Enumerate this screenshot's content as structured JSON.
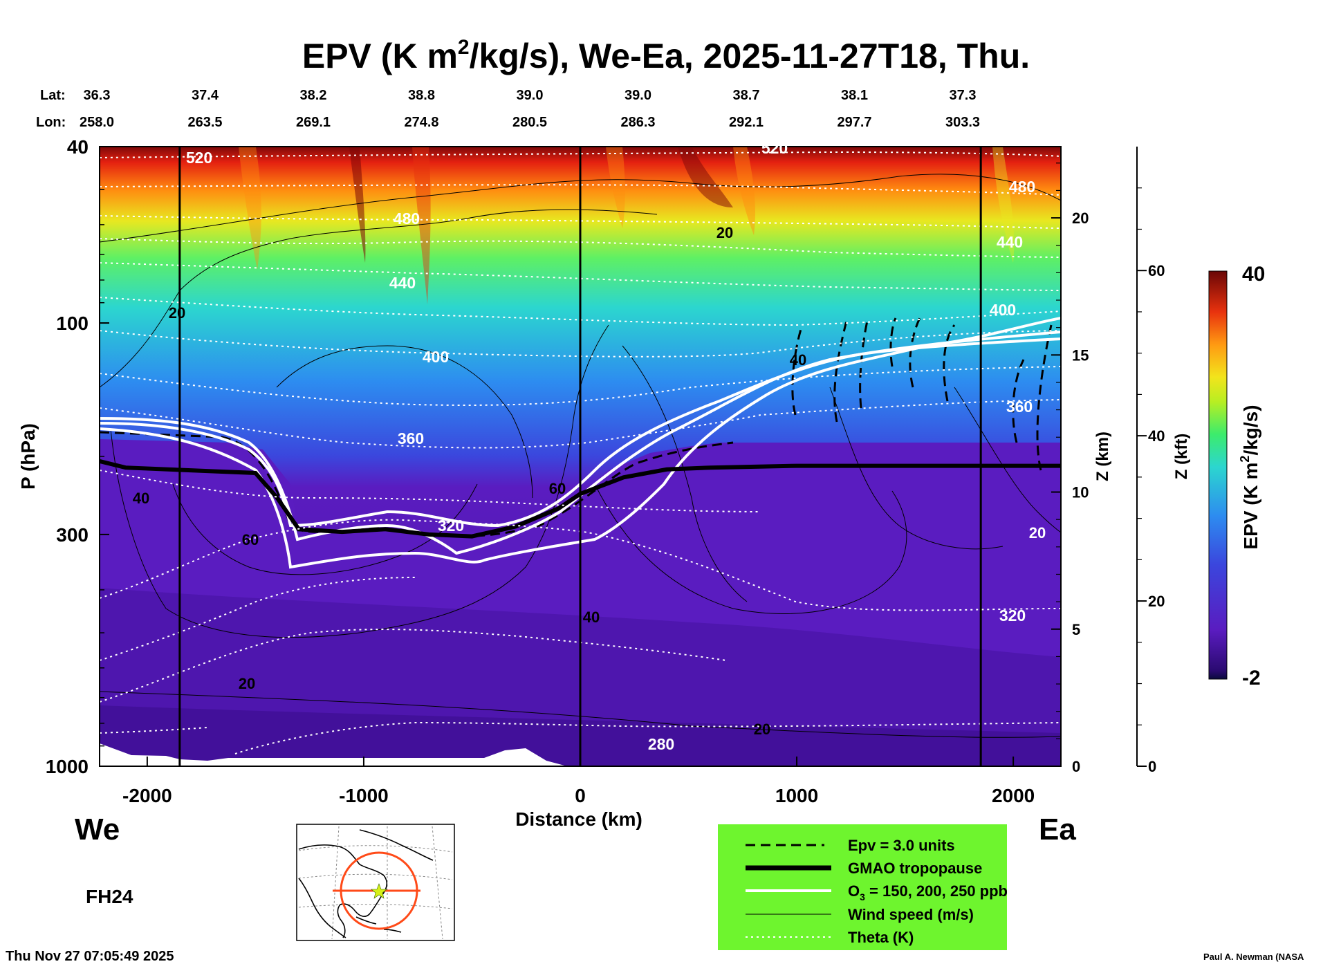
{
  "chart_data": {
    "type": "heatmap",
    "title": {
      "prefix": "EPV (K m",
      "sup": "2",
      "suffix": "/kg/s), We-Ea, 2025-11-27T18, Thu."
    },
    "lat_header": "Lat:",
    "lon_header": "Lon:",
    "lat_values": [
      "36.3",
      "37.4",
      "38.2",
      "38.8",
      "39.0",
      "39.0",
      "38.7",
      "38.1",
      "37.3"
    ],
    "lon_values": [
      "258.0",
      "263.5",
      "269.1",
      "274.8",
      "280.5",
      "286.3",
      "292.1",
      "297.7",
      "303.3"
    ],
    "xlabel": "Distance (km)",
    "xlim": [
      -2220,
      2220
    ],
    "xticks": [
      {
        "value": -2000,
        "label": "-2000"
      },
      {
        "value": -1000,
        "label": "-1000"
      },
      {
        "value": 0,
        "label": "0"
      },
      {
        "value": 1000,
        "label": "1000"
      },
      {
        "value": 2000,
        "label": "2000"
      }
    ],
    "ylabel": "P (hPa)",
    "ylim": [
      1000,
      40
    ],
    "yscale": "log",
    "yticks": [
      {
        "value": 40,
        "label": "40"
      },
      {
        "value": 100,
        "label": "100"
      },
      {
        "value": 300,
        "label": "300"
      },
      {
        "value": 1000,
        "label": "1000"
      }
    ],
    "z_km_label": "Z (km)",
    "z_km_ticks": [
      {
        "value": 0,
        "label": "0"
      },
      {
        "value": 5,
        "label": "5"
      },
      {
        "value": 10,
        "label": "10"
      },
      {
        "value": 15,
        "label": "15"
      },
      {
        "value": 20,
        "label": "20"
      }
    ],
    "z_kft_label": "Z (kft)",
    "z_kft_ticks": [
      {
        "value": 0,
        "label": "0"
      },
      {
        "value": 20,
        "label": "20"
      },
      {
        "value": 40,
        "label": "40"
      },
      {
        "value": 60,
        "label": "60"
      }
    ],
    "colorbar": {
      "label_prefix": "EPV (K m",
      "label_sup": "2",
      "label_suffix": "/kg/s)",
      "min": -2,
      "max": 40,
      "min_label": "-2",
      "max_label": "40"
    },
    "vertical_lines_km": [
      -1850,
      0,
      1850
    ],
    "theta_levels": [
      {
        "value": 280,
        "label": "280"
      },
      {
        "value": 320,
        "label": "320"
      },
      {
        "value": 360,
        "label": "360"
      },
      {
        "value": 400,
        "label": "400"
      },
      {
        "value": 440,
        "label": "440"
      },
      {
        "value": 480,
        "label": "480"
      },
      {
        "value": 520,
        "label": "520"
      }
    ],
    "wind_labels": [
      "20",
      "40",
      "60"
    ],
    "tropopause_hpa": [
      [
        -2220,
        205
      ],
      [
        -2100,
        212
      ],
      [
        -1500,
        218
      ],
      [
        -1400,
        248
      ],
      [
        -1300,
        292
      ],
      [
        -1100,
        296
      ],
      [
        -900,
        292
      ],
      [
        -700,
        300
      ],
      [
        -500,
        303
      ],
      [
        -300,
        288
      ],
      [
        -100,
        262
      ],
      [
        0,
        243
      ],
      [
        200,
        223
      ],
      [
        400,
        214
      ],
      [
        600,
        212
      ],
      [
        1000,
        210
      ],
      [
        2220,
        210
      ]
    ],
    "ozone_levels_ppb": [
      150,
      200,
      250
    ],
    "legend": [
      {
        "style": "dashed",
        "label": "Epv = 3.0 units"
      },
      {
        "style": "thick",
        "label": "GMAO tropopause"
      },
      {
        "style": "white",
        "label_prefix": "O",
        "label_sub": "3",
        "label_suffix": " = 150, 200, 250 ppb"
      },
      {
        "style": "thin",
        "label": "Wind speed (m/s)"
      },
      {
        "style": "dotted",
        "label": "Theta (K)"
      }
    ],
    "legend_bg": "#6ef52e",
    "side_left": "We",
    "side_right": "Ea",
    "forecast_hour": "FH24",
    "timestamp": "Thu Nov 27 07:05:49 2025",
    "credit": "Paul A. Newman (NASA"
  }
}
